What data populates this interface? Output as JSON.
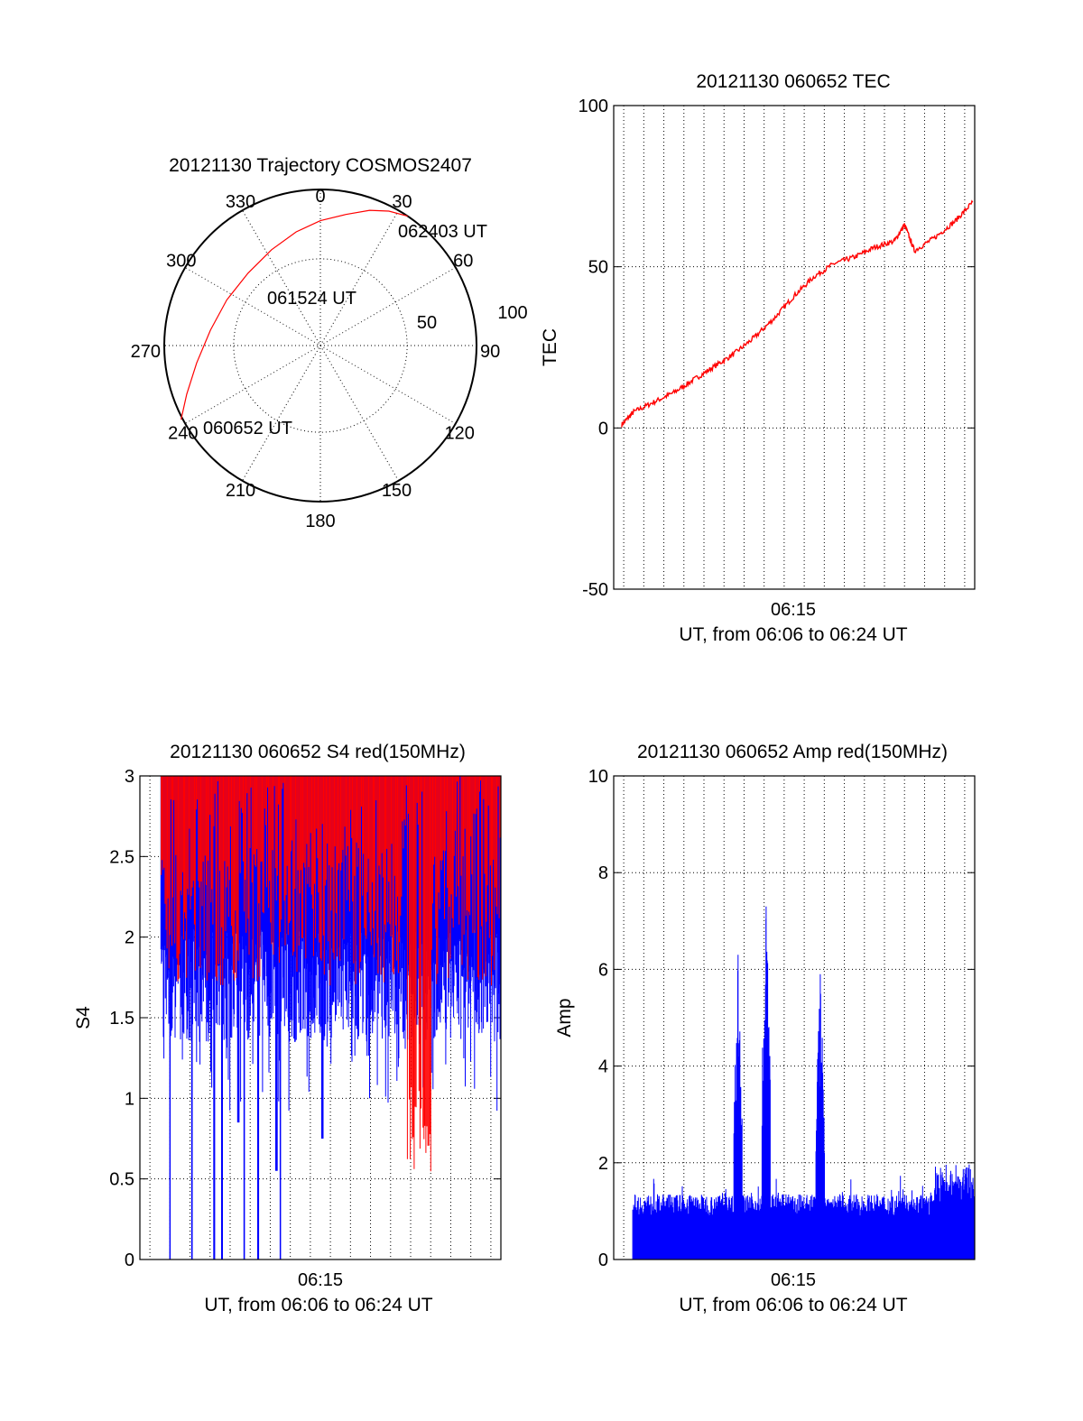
{
  "chart_data": [
    {
      "type": "polar",
      "title": "20121130 Trajectory COSMOS2407",
      "angle_labels": [
        "0",
        "30",
        "60",
        "90",
        "120",
        "150",
        "180",
        "210",
        "240",
        "270",
        "300",
        "330"
      ],
      "radius_labels": [
        "50",
        "100"
      ],
      "trajectory": {
        "color": "#ff0000",
        "points": [
          {
            "az": 242,
            "zenith_dist": 91
          },
          {
            "az": 250,
            "zenith_dist": 82
          },
          {
            "az": 262,
            "zenith_dist": 72
          },
          {
            "az": 278,
            "zenith_dist": 64
          },
          {
            "az": 296,
            "zenith_dist": 60
          },
          {
            "az": 315,
            "zenith_dist": 59
          },
          {
            "az": 333,
            "zenith_dist": 62
          },
          {
            "az": 348,
            "zenith_dist": 67
          },
          {
            "az": 0,
            "zenith_dist": 72
          },
          {
            "az": 11,
            "zenith_dist": 77
          },
          {
            "az": 20,
            "zenith_dist": 83
          },
          {
            "az": 27,
            "zenith_dist": 87
          },
          {
            "az": 34,
            "zenith_dist": 90
          }
        ]
      },
      "annotations": [
        "062403 UT",
        "061524 UT",
        "060652 UT"
      ]
    },
    {
      "type": "line",
      "title": "20121130 060652 TEC",
      "ylabel": "TEC",
      "xlabel": "UT, from 06:06 to 06:24 UT",
      "x_tick_label": "06:15",
      "ylim": [
        -50,
        100
      ],
      "y_ticks": [
        "-50",
        "0",
        "50",
        "100"
      ],
      "x_range_min": [
        6.5,
        24.5
      ],
      "series": [
        {
          "color": "#ff0000",
          "x": [
            6.9,
            7.5,
            8.5,
            9.5,
            10.5,
            11.5,
            12.5,
            13.5,
            14.5,
            15.5,
            16.5,
            17.5,
            18.5,
            19.5,
            20.5,
            21.0,
            21.5,
            22.5,
            23.5,
            24.4
          ],
          "values": [
            1,
            5,
            8,
            11,
            15,
            19,
            23,
            28,
            34,
            41,
            47,
            51,
            53,
            56,
            58,
            63,
            55,
            59,
            64,
            70
          ]
        }
      ]
    },
    {
      "type": "line",
      "title": "20121130 060652 S4 red(150MHz)",
      "ylabel": "S4",
      "xlabel": "UT, from 06:06 to 06:24 UT",
      "x_tick_label": "06:15",
      "ylim": [
        0,
        3
      ],
      "y_ticks": [
        "0",
        "0.5",
        "1",
        "1.5",
        "2",
        "2.5",
        "3"
      ],
      "x_range_min": [
        6.5,
        24.5
      ],
      "series": [
        {
          "color": "#0000ff",
          "description_range": [
            0,
            3
          ]
        },
        {
          "color": "#ff0000",
          "description_range": [
            0.45,
            3
          ]
        }
      ]
    },
    {
      "type": "bar",
      "title": "20121130 060652 Amp red(150MHz)",
      "ylabel": "Amp",
      "xlabel": "UT, from 06:06 to 06:24 UT",
      "x_tick_label": "06:15",
      "ylim": [
        0,
        10
      ],
      "y_ticks": [
        "0",
        "2",
        "4",
        "6",
        "8",
        "10"
      ],
      "x_range_min": [
        6.5,
        24.5
      ],
      "series": [
        {
          "color": "#0000ff",
          "baseline_level": 1.1,
          "spikes": [
            {
              "x": 12.7,
              "value": 6.3
            },
            {
              "x": 14.1,
              "value": 7.3
            },
            {
              "x": 16.8,
              "value": 5.9
            }
          ]
        }
      ]
    }
  ]
}
